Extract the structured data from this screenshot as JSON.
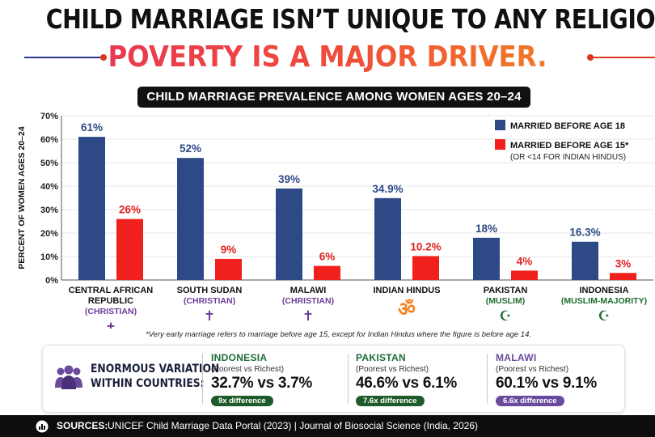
{
  "headline": {
    "line1": "CHILD MARRIAGE ISN’T UNIQUE TO ANY RELIGION.",
    "line2": "POVERTY IS A MAJOR DRIVER."
  },
  "subtitle": "CHILD MARRIAGE PREVALENCE AMONG WOMEN AGES 20–24",
  "colors": {
    "married_18": "#2e4a86",
    "married_15": "#f0201d",
    "accent_red": "#e8345a",
    "accent_orange": "#f28a1e",
    "religion_purple": "#6a3d9a",
    "religion_orange": "#f58220",
    "religion_green": "#1e6b2d",
    "badge_green": "#1d5c2a",
    "badge_purple": "#6a4a9c",
    "name_teal": "#1e6b3a",
    "name_purple": "#6a4a9c"
  },
  "chart_data": {
    "type": "bar",
    "title": "CHILD MARRIAGE PREVALENCE AMONG WOMEN AGES 20–24",
    "ylabel": "PERCENT OF WOMEN AGES 20–24",
    "xlabel": "",
    "ylim": [
      0,
      70
    ],
    "y_ticks": [
      "0%",
      "10%",
      "20%",
      "30%",
      "40%",
      "50%",
      "60%",
      "70%"
    ],
    "grid": true,
    "legend_position": "top-right",
    "categories": [
      {
        "name": "CENTRAL AFRICAN REPUBLIC",
        "name_lines": [
          "CENTRAL AFRICAN",
          "REPUBLIC"
        ],
        "religion": "(CHRISTIAN)",
        "symbol": "latin-cross-icon",
        "glyph": "✝",
        "religion_color": "#6a3d9a"
      },
      {
        "name": "SOUTH SUDAN",
        "name_lines": [
          "SOUTH SUDAN"
        ],
        "religion": "(CHRISTIAN)",
        "symbol": "latin-cross-icon",
        "glyph": "✝",
        "religion_color": "#6a3d9a"
      },
      {
        "name": "MALAWI",
        "name_lines": [
          "MALAWI"
        ],
        "religion": "(CHRISTIAN)",
        "symbol": "latin-cross-icon",
        "glyph": "✝",
        "religion_color": "#6a3d9a"
      },
      {
        "name": "INDIAN HINDUS",
        "name_lines": [
          "INDIAN HINDUS"
        ],
        "religion": "",
        "symbol": "om-icon",
        "glyph": "ॐ",
        "religion_color": "#f58220"
      },
      {
        "name": "PAKISTAN",
        "name_lines": [
          "PAKISTAN"
        ],
        "religion": "(MUSLIM)",
        "symbol": "crescent-star-icon",
        "glyph": "☪",
        "religion_color": "#1e6b2d"
      },
      {
        "name": "INDONESIA",
        "name_lines": [
          "INDONESIA"
        ],
        "religion": "(MUSLIM-MAJORITY)",
        "symbol": "crescent-star-icon",
        "glyph": "☪",
        "religion_color": "#1e6b2d"
      }
    ],
    "series": [
      {
        "name": "MARRIED BEFORE AGE 18",
        "color": "#2e4a86",
        "values": [
          61,
          52,
          39,
          34.9,
          18,
          16.3
        ],
        "labels": [
          "61%",
          "52%",
          "39%",
          "34.9%",
          "18%",
          "16.3%"
        ]
      },
      {
        "name": "MARRIED BEFORE AGE 15*",
        "note": "(OR <14 FOR INDIAN HINDUS)",
        "color": "#f0201d",
        "values": [
          26,
          9,
          6,
          10.2,
          4,
          3
        ],
        "labels": [
          "26%",
          "9%",
          "6%",
          "10.2%",
          "4%",
          "3%"
        ]
      }
    ]
  },
  "footnote": "*Very early marriage refers to marriage before age 15, except for Indian Hindus where the figure is before age 14.",
  "variation": {
    "label_line1": "ENORMOUS VARIATION",
    "label_line2": "WITHIN COUNTRIES:",
    "icon": "people-group-icon",
    "countries": [
      {
        "name": "INDONESIA",
        "sub": "(Poorest vs Richest)",
        "values": "32.7% vs 3.7%",
        "badge": "9x difference"
      },
      {
        "name": "PAKISTAN",
        "sub": "(Poorest vs Richest)",
        "values": "46.6% vs 6.1%",
        "badge": "7.6x difference"
      },
      {
        "name": "MALAWI",
        "sub": "(Poorest vs Richest)",
        "values": "60.1% vs 9.1%",
        "badge": "6.6x difference"
      }
    ]
  },
  "footer": {
    "icon": "bar-chart-icon",
    "label": "SOURCES:",
    "text": "UNICEF Child Marriage Data Portal (2023)  |  Journal of Biosocial Science (India, 2026)"
  }
}
